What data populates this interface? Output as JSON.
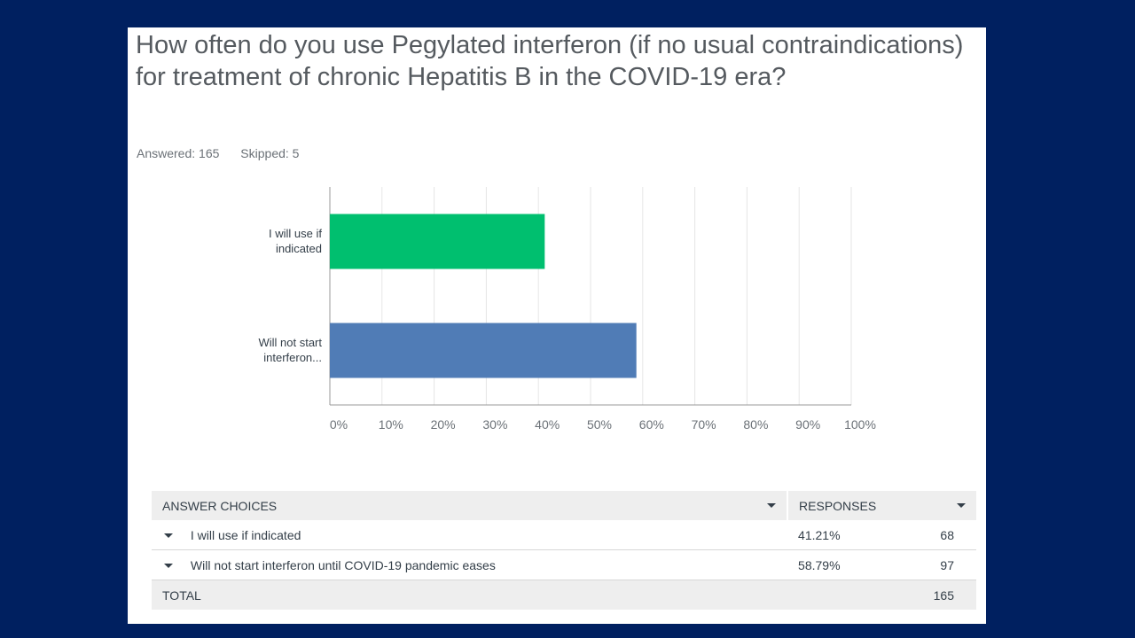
{
  "question": "How often do you use Pegylated interferon (if no usual contraindications) for treatment of chronic Hepatitis B in the COVID-19 era?",
  "stats": {
    "answered": "Answered: 165",
    "skipped": "Skipped: 5"
  },
  "chart_data": {
    "type": "bar",
    "orientation": "horizontal",
    "categories": [
      "I will use if indicated",
      "Will not start interferon until COVID-19 pandemic eases"
    ],
    "category_labels": [
      [
        "I will use if",
        "indicated"
      ],
      [
        "Will not start",
        "interferon..."
      ]
    ],
    "values": [
      41.21,
      58.79
    ],
    "colors": [
      "#00bf6f",
      "#507cb6"
    ],
    "xlim": [
      0,
      100
    ],
    "xticks": [
      "0%",
      "10%",
      "20%",
      "30%",
      "40%",
      "50%",
      "60%",
      "70%",
      "80%",
      "90%",
      "100%"
    ],
    "grid": true
  },
  "table": {
    "headers": {
      "choices": "Answer Choices",
      "responses": "Responses"
    },
    "rows": [
      {
        "choice": "I will use if indicated",
        "percent": "41.21%",
        "count": "68"
      },
      {
        "choice": "Will not start interferon until COVID-19 pandemic eases",
        "percent": "58.79%",
        "count": "97"
      }
    ],
    "total": {
      "label": "Total",
      "count": "165"
    }
  }
}
